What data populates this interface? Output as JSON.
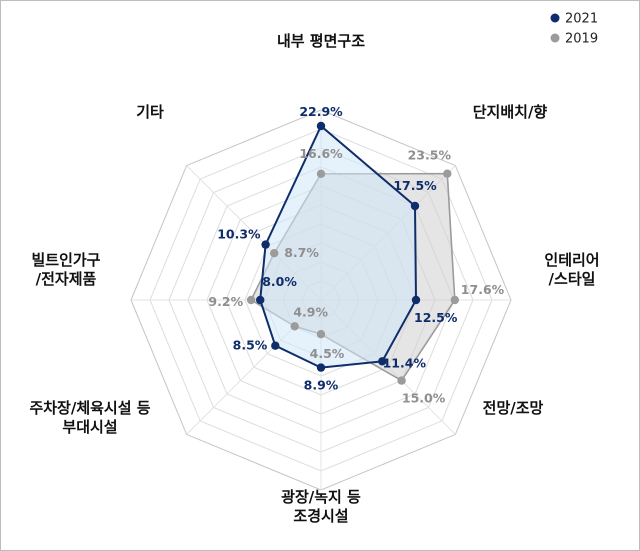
{
  "chart_data": {
    "type": "radar",
    "categories": [
      [
        "내부 평면구조"
      ],
      [
        "단지배치/향"
      ],
      [
        "인테리어",
        "/스타일"
      ],
      [
        "전망/조망"
      ],
      [
        "광장/녹지 등",
        "조경시설"
      ],
      [
        "주차장/체육시설 등",
        "부대시설"
      ],
      [
        "빌트인가구",
        "/전자제품"
      ],
      [
        "기타"
      ]
    ],
    "series": [
      {
        "name": "2021",
        "color": "#0f2d6b",
        "fill": "#cfe6f7",
        "values": [
          22.9,
          17.5,
          12.5,
          11.4,
          8.9,
          8.5,
          8.0,
          10.3
        ],
        "labels": [
          "22.9%",
          "17.5%",
          "12.5%",
          "11.4%",
          "8.9%",
          "8.5%",
          "8.0%",
          "10.3%"
        ]
      },
      {
        "name": "2019",
        "color": "#9b9b9b",
        "fill": "#cfcfcf",
        "values": [
          16.6,
          23.5,
          17.6,
          15.0,
          4.5,
          4.9,
          9.2,
          8.7
        ],
        "labels": [
          "16.6%",
          "23.5%",
          "17.6%",
          "15.0%",
          "4.5%",
          "4.9%",
          "9.2%",
          "8.7%"
        ]
      }
    ],
    "rmax": 25,
    "grid_rings": 10,
    "legend": "top-right"
  }
}
